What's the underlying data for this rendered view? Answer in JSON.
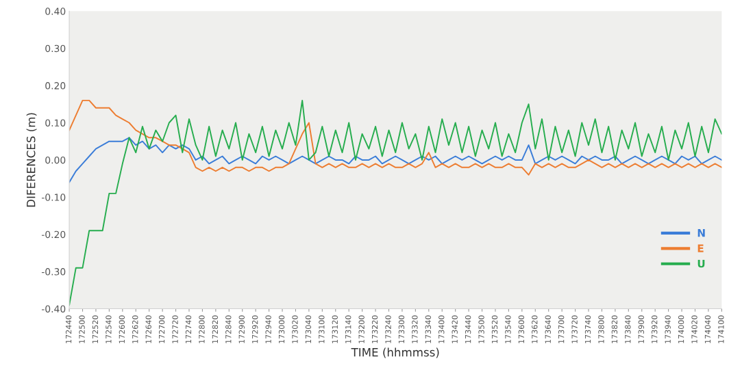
{
  "chart_data": {
    "type": "line",
    "xlabel": "TIME (hhmmss)",
    "ylabel": "DIFERENCES (m)",
    "categories": [
      "172440",
      null,
      "172500",
      null,
      "172520",
      null,
      "172540",
      null,
      "172600",
      null,
      "172620",
      null,
      "172640",
      null,
      "172700",
      null,
      "172720",
      null,
      "172740",
      null,
      "172800",
      null,
      "172820",
      null,
      "172840",
      null,
      "172900",
      null,
      "172920",
      null,
      "172940",
      null,
      "173000",
      null,
      "173020",
      null,
      "173040",
      null,
      "173100",
      null,
      "173120",
      null,
      "173140",
      null,
      "173200",
      null,
      "173220",
      null,
      "173240",
      null,
      "173300",
      null,
      "173320",
      null,
      "173340",
      null,
      "173400",
      null,
      "173420",
      null,
      "173440",
      null,
      "173500",
      null,
      "173520",
      null,
      "173540",
      null,
      "173600",
      null,
      "173620",
      null,
      "173640",
      null,
      "173700",
      null,
      "173720",
      null,
      "173740",
      null,
      "173800",
      null,
      "173820",
      null,
      "173840",
      null,
      "173900",
      null,
      "173920",
      null,
      "173940",
      null,
      "174000",
      null,
      "174020",
      null,
      "174040",
      null,
      "174100"
    ],
    "series": [
      {
        "name": "N",
        "color": "#3b7dd8",
        "values": [
          -0.06,
          -0.03,
          -0.01,
          0.01,
          0.03,
          0.04,
          0.05,
          0.05,
          0.05,
          0.06,
          0.04,
          0.05,
          0.03,
          0.04,
          0.02,
          0.04,
          0.03,
          0.04,
          0.03,
          0.0,
          0.01,
          -0.01,
          0.0,
          0.01,
          -0.01,
          0.0,
          0.01,
          0.0,
          -0.01,
          0.01,
          0.0,
          0.01,
          0.0,
          -0.01,
          0.0,
          0.01,
          0.0,
          -0.01,
          0.0,
          0.01,
          0.0,
          0.0,
          -0.01,
          0.01,
          0.0,
          0.0,
          0.01,
          -0.01,
          0.0,
          0.01,
          0.0,
          -0.01,
          0.0,
          0.01,
          0.0,
          0.01,
          -0.01,
          0.0,
          0.01,
          0.0,
          0.01,
          0.0,
          -0.01,
          0.0,
          0.01,
          0.0,
          0.01,
          0.0,
          0.0,
          0.04,
          -0.01,
          0.0,
          0.01,
          0.0,
          0.01,
          0.0,
          -0.01,
          0.01,
          0.0,
          0.01,
          0.0,
          0.0,
          0.01,
          -0.01,
          0.0,
          0.01,
          0.0,
          -0.01,
          0.0,
          0.01,
          0.0,
          -0.01,
          0.01,
          0.0,
          0.01,
          -0.01,
          0.0,
          0.01,
          0.0
        ]
      },
      {
        "name": "E",
        "color": "#ed7d31",
        "values": [
          0.08,
          0.12,
          0.16,
          0.16,
          0.14,
          0.14,
          0.14,
          0.12,
          0.11,
          0.1,
          0.08,
          0.07,
          0.06,
          0.06,
          0.05,
          0.04,
          0.04,
          0.03,
          0.02,
          -0.02,
          -0.03,
          -0.02,
          -0.03,
          -0.02,
          -0.03,
          -0.02,
          -0.02,
          -0.03,
          -0.02,
          -0.02,
          -0.03,
          -0.02,
          -0.02,
          -0.01,
          0.03,
          0.07,
          0.1,
          -0.01,
          -0.02,
          -0.01,
          -0.02,
          -0.01,
          -0.02,
          -0.02,
          -0.01,
          -0.02,
          -0.01,
          -0.02,
          -0.01,
          -0.02,
          -0.02,
          -0.01,
          -0.02,
          -0.01,
          0.02,
          -0.02,
          -0.01,
          -0.02,
          -0.01,
          -0.02,
          -0.02,
          -0.01,
          -0.02,
          -0.01,
          -0.02,
          -0.02,
          -0.01,
          -0.02,
          -0.02,
          -0.04,
          -0.01,
          -0.02,
          -0.01,
          -0.02,
          -0.01,
          -0.02,
          -0.02,
          -0.01,
          0.0,
          -0.01,
          -0.02,
          -0.01,
          -0.02,
          -0.01,
          -0.02,
          -0.01,
          -0.02,
          -0.01,
          -0.02,
          -0.01,
          -0.02,
          -0.01,
          -0.02,
          -0.01,
          -0.02,
          -0.01,
          -0.02,
          -0.01,
          -0.02
        ]
      },
      {
        "name": "U",
        "color": "#27ad4f",
        "values": [
          -0.39,
          -0.29,
          -0.29,
          -0.19,
          -0.19,
          -0.19,
          -0.09,
          -0.09,
          -0.01,
          0.06,
          0.02,
          0.09,
          0.03,
          0.08,
          0.05,
          0.1,
          0.12,
          0.02,
          0.11,
          0.04,
          0.0,
          0.09,
          0.01,
          0.08,
          0.03,
          0.1,
          0.0,
          0.07,
          0.02,
          0.09,
          0.01,
          0.08,
          0.03,
          0.1,
          0.04,
          0.16,
          0.0,
          0.02,
          0.09,
          0.01,
          0.08,
          0.02,
          0.1,
          0.0,
          0.07,
          0.03,
          0.09,
          0.01,
          0.08,
          0.02,
          0.1,
          0.03,
          0.07,
          0.0,
          0.09,
          0.02,
          0.11,
          0.04,
          0.1,
          0.02,
          0.09,
          0.01,
          0.08,
          0.03,
          0.1,
          0.01,
          0.07,
          0.02,
          0.1,
          0.15,
          0.03,
          0.11,
          0.0,
          0.09,
          0.02,
          0.08,
          0.01,
          0.1,
          0.04,
          0.11,
          0.02,
          0.09,
          0.0,
          0.08,
          0.03,
          0.1,
          0.01,
          0.07,
          0.02,
          0.09,
          0.0,
          0.08,
          0.03,
          0.1,
          0.01,
          0.09,
          0.02,
          0.11,
          0.07
        ]
      }
    ],
    "ylim": [
      -0.4,
      0.4
    ],
    "yticks": [
      {
        "value": -0.4,
        "label": "-0.40"
      },
      {
        "value": -0.3,
        "label": "-0.30"
      },
      {
        "value": -0.2,
        "label": "-0.20"
      },
      {
        "value": -0.1,
        "label": "-0.10"
      },
      {
        "value": 0,
        "label": "0.00"
      },
      {
        "value": 0.1,
        "label": "0.10"
      },
      {
        "value": 0.2,
        "label": "0.20"
      },
      {
        "value": 0.3,
        "label": "0.30"
      },
      {
        "value": 0.4,
        "label": "0.40"
      }
    ],
    "legend": "bottom right"
  }
}
